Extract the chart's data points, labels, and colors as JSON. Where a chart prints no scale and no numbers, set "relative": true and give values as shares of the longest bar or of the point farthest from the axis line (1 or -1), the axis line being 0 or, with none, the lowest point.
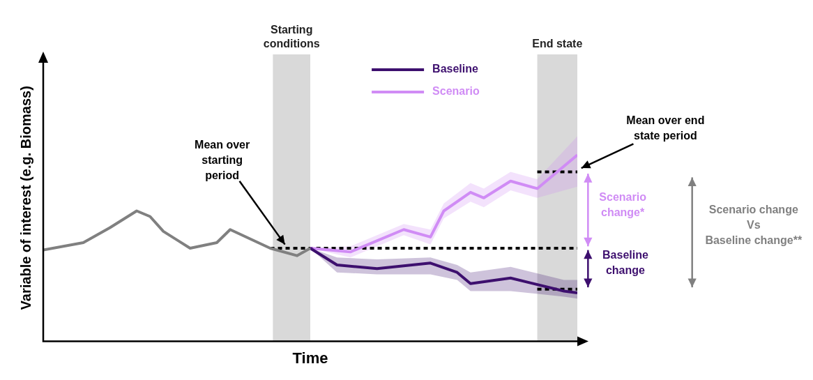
{
  "chart_data": {
    "type": "line",
    "relative": true,
    "xlabel": "Time",
    "ylabel": "Variable of interest (e.g. Biomass)",
    "legend": "top",
    "categories": [
      null,
      null,
      null,
      null,
      null,
      null,
      null,
      null,
      null,
      null,
      null,
      null,
      null,
      null,
      null,
      null,
      null,
      null,
      null,
      null,
      null,
      null,
      null,
      null,
      null,
      null,
      null,
      null,
      null,
      null,
      null,
      null,
      null,
      null,
      null,
      null,
      null,
      null,
      null,
      null,
      null
    ],
    "series": [
      {
        "color": "#808080",
        "values": [
          0.49,
          null,
          null,
          0.53,
          null,
          0.61,
          null,
          0.7,
          0.67,
          0.59,
          null,
          0.5,
          null,
          0.53,
          0.6,
          null,
          null,
          0.5,
          null,
          0.46,
          0.5,
          null,
          null,
          null,
          null,
          null,
          null,
          null,
          null,
          null,
          null,
          null,
          null,
          null,
          null,
          null,
          null,
          null,
          null,
          null,
          null
        ]
      },
      {
        "name": "Baseline",
        "color": "#3d0f6e",
        "values": [
          null,
          null,
          null,
          null,
          null,
          null,
          null,
          null,
          null,
          null,
          null,
          null,
          null,
          null,
          null,
          null,
          null,
          null,
          null,
          null,
          0.5,
          null,
          0.41,
          null,
          null,
          0.39,
          null,
          null,
          null,
          0.42,
          null,
          0.37,
          0.31,
          null,
          null,
          0.34,
          null,
          null,
          null,
          0.27,
          0.26
        ],
        "upper": [
          null,
          null,
          null,
          null,
          null,
          null,
          null,
          null,
          null,
          null,
          null,
          null,
          null,
          null,
          null,
          null,
          null,
          null,
          null,
          null,
          0.5,
          null,
          0.45,
          null,
          null,
          0.44,
          null,
          null,
          null,
          0.45,
          null,
          0.41,
          0.37,
          null,
          null,
          0.4,
          null,
          null,
          null,
          0.33,
          0.33
        ],
        "lower": [
          null,
          null,
          null,
          null,
          null,
          null,
          null,
          null,
          null,
          null,
          null,
          null,
          null,
          null,
          null,
          null,
          null,
          null,
          null,
          null,
          0.5,
          null,
          0.37,
          null,
          null,
          0.36,
          null,
          null,
          null,
          0.36,
          null,
          0.33,
          0.27,
          null,
          null,
          0.27,
          null,
          null,
          null,
          0.24,
          0.23
        ]
      },
      {
        "name": "Scenario",
        "color": "#d08cf5",
        "values": [
          null,
          null,
          null,
          null,
          null,
          null,
          null,
          null,
          null,
          null,
          null,
          null,
          null,
          null,
          null,
          null,
          null,
          null,
          null,
          null,
          0.5,
          null,
          null,
          0.48,
          null,
          null,
          null,
          0.6,
          null,
          0.56,
          0.7,
          null,
          0.8,
          0.77,
          null,
          0.86,
          null,
          0.82,
          null,
          null,
          1
        ],
        "upper": [
          null,
          null,
          null,
          null,
          null,
          null,
          null,
          null,
          null,
          null,
          null,
          null,
          null,
          null,
          null,
          null,
          null,
          null,
          null,
          null,
          0.5,
          null,
          null,
          0.51,
          null,
          null,
          null,
          0.63,
          null,
          0.6,
          0.74,
          null,
          0.85,
          0.82,
          null,
          0.91,
          null,
          0.87,
          null,
          null,
          1.1
        ],
        "lower": [
          null,
          null,
          null,
          null,
          null,
          null,
          null,
          null,
          null,
          null,
          null,
          null,
          null,
          null,
          null,
          null,
          null,
          null,
          null,
          null,
          0.5,
          null,
          null,
          0.45,
          null,
          null,
          null,
          0.57,
          null,
          0.52,
          0.66,
          null,
          0.75,
          0.72,
          null,
          0.81,
          null,
          0.77,
          null,
          null,
          0.83
        ]
      },
      {
        "color": "#000000",
        "line_style": "dashed",
        "values": [
          null,
          null,
          null,
          null,
          null,
          null,
          null,
          null,
          null,
          null,
          null,
          null,
          null,
          null,
          null,
          null,
          null,
          0.5,
          null,
          null,
          null,
          null,
          null,
          null,
          null,
          null,
          null,
          null,
          null,
          null,
          null,
          null,
          null,
          null,
          null,
          null,
          null,
          null,
          null,
          null,
          0.5
        ]
      },
      {
        "color": "#000000",
        "line_style": "dashed",
        "values": [
          null,
          null,
          null,
          null,
          null,
          null,
          null,
          null,
          null,
          null,
          null,
          null,
          null,
          null,
          null,
          null,
          null,
          null,
          null,
          null,
          null,
          null,
          null,
          null,
          null,
          null,
          null,
          null,
          null,
          null,
          null,
          null,
          null,
          null,
          null,
          null,
          null,
          0.91,
          null,
          null,
          0.91
        ]
      },
      {
        "color": "#000000",
        "line_style": "dashed",
        "values": [
          null,
          null,
          null,
          null,
          null,
          null,
          null,
          null,
          null,
          null,
          null,
          null,
          null,
          null,
          null,
          null,
          null,
          null,
          null,
          null,
          null,
          null,
          null,
          null,
          null,
          null,
          null,
          null,
          null,
          null,
          null,
          null,
          null,
          null,
          null,
          null,
          null,
          0.28,
          null,
          null,
          0.28
        ]
      }
    ],
    "annotations": [
      "Mean over starting period",
      "Mean over end state period",
      "Scenario change*",
      "Baseline change",
      "Scenario change\nVs\nBaseline change**",
      "Starting conditions",
      "End state"
    ]
  }
}
